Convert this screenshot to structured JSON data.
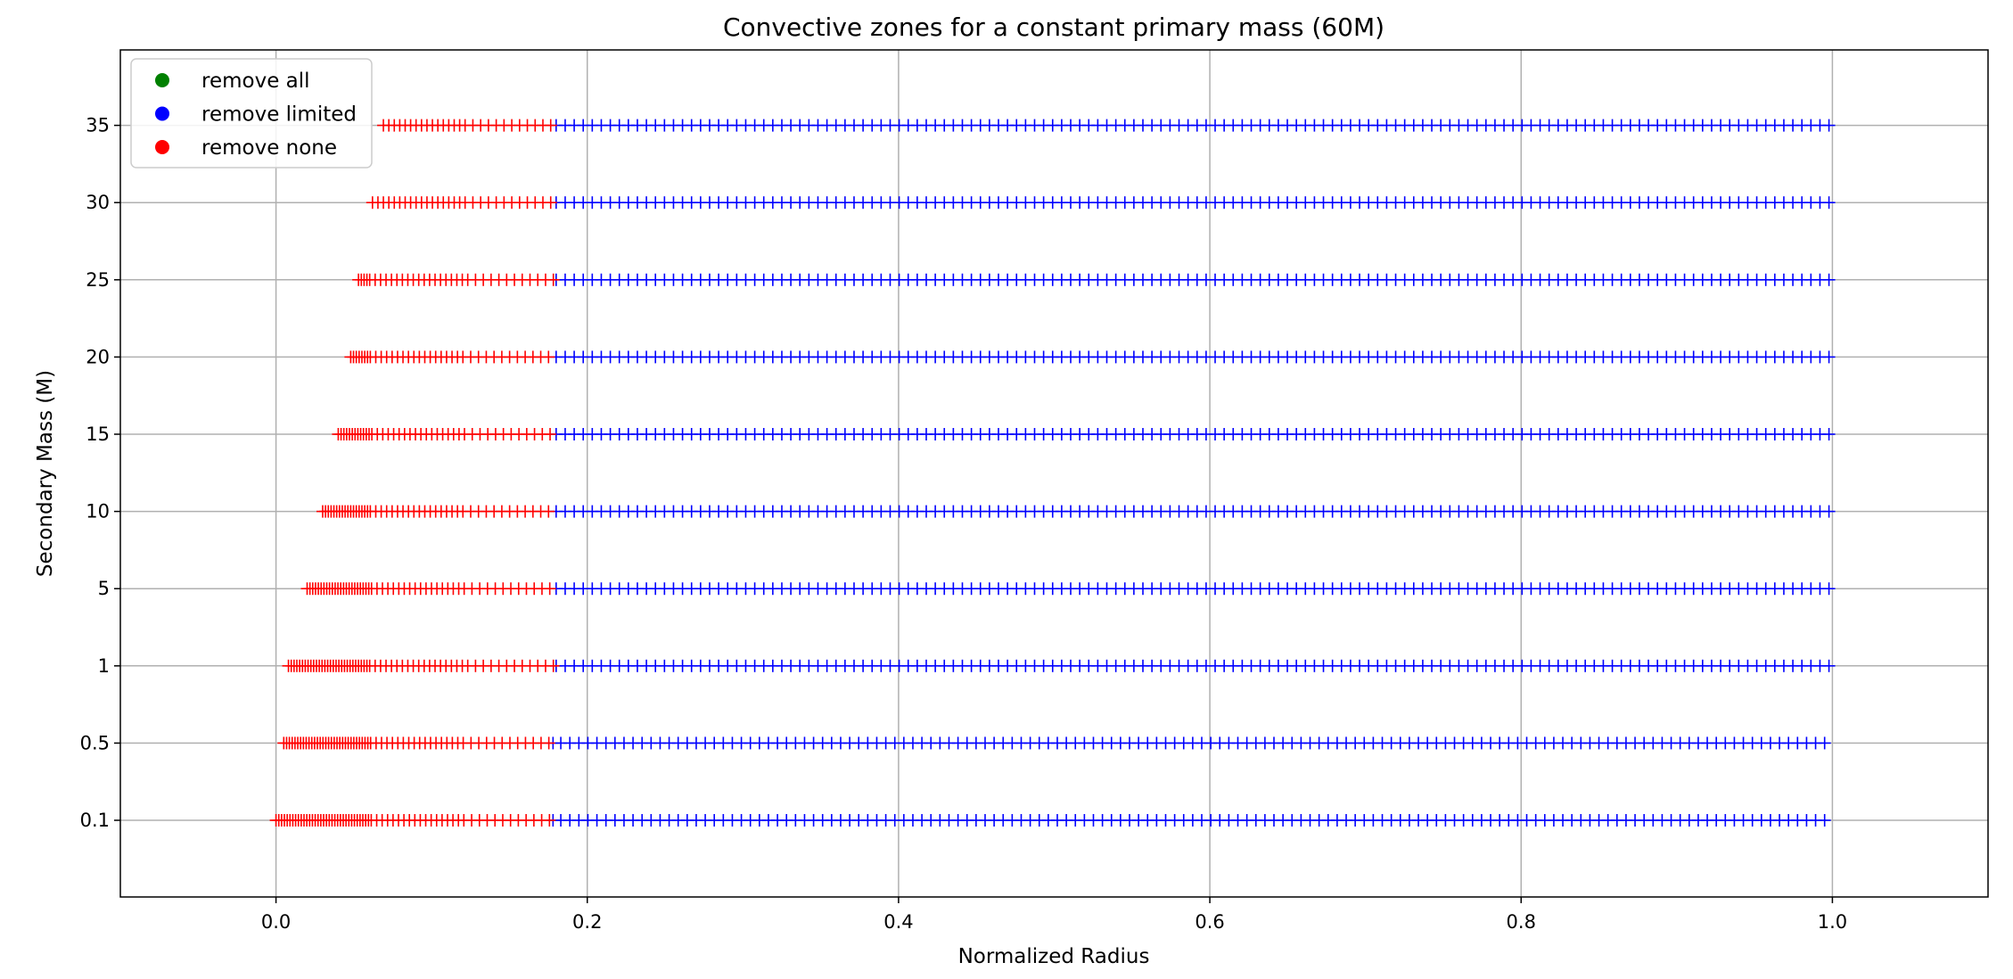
{
  "chart_data": {
    "type": "scatter",
    "title": "Convective zones for a constant primary mass (60M)",
    "xlabel": "Normalized Radius",
    "ylabel": "Secondary Mass (M)",
    "xlim": [
      -0.1,
      1.1
    ],
    "x_ticks": [
      "0.0",
      "0.2",
      "0.4",
      "0.6",
      "0.8",
      "1.0"
    ],
    "x_tick_values": [
      0.0,
      0.2,
      0.4,
      0.6,
      0.8,
      1.0
    ],
    "categories": [
      "0.1",
      "0.5",
      "1",
      "5",
      "10",
      "15",
      "20",
      "25",
      "30",
      "35"
    ],
    "grid": true,
    "legend_placement": "top-left",
    "marker": "plus",
    "series": [
      {
        "name": "remove all",
        "color": "#008000",
        "points": []
      },
      {
        "name": "remove limited",
        "color": "#0000ff",
        "segments": [
          {
            "category": "0.1",
            "x_range": [
              0.178,
              1.0
            ]
          },
          {
            "category": "0.5",
            "x_range": [
              0.178,
              1.0
            ]
          },
          {
            "category": "1",
            "x_range": [
              0.18,
              1.0
            ]
          },
          {
            "category": "5",
            "x_range": [
              0.18,
              1.0
            ]
          },
          {
            "category": "10",
            "x_range": [
              0.18,
              1.0
            ]
          },
          {
            "category": "15",
            "x_range": [
              0.18,
              1.0
            ]
          },
          {
            "category": "20",
            "x_range": [
              0.18,
              1.0
            ]
          },
          {
            "category": "25",
            "x_range": [
              0.18,
              1.0
            ]
          },
          {
            "category": "30",
            "x_range": [
              0.18,
              1.0
            ]
          },
          {
            "category": "35",
            "x_range": [
              0.18,
              1.0
            ]
          }
        ]
      },
      {
        "name": "remove none",
        "color": "#ff0000",
        "segments": [
          {
            "category": "0.1",
            "x_range": [
              0.0,
              0.178
            ]
          },
          {
            "category": "0.5",
            "x_range": [
              0.005,
              0.178
            ]
          },
          {
            "category": "1",
            "x_range": [
              0.008,
              0.18
            ]
          },
          {
            "category": "5",
            "x_range": [
              0.02,
              0.18
            ]
          },
          {
            "category": "10",
            "x_range": [
              0.03,
              0.18
            ]
          },
          {
            "category": "15",
            "x_range": [
              0.04,
              0.18
            ]
          },
          {
            "category": "20",
            "x_range": [
              0.048,
              0.18
            ]
          },
          {
            "category": "25",
            "x_range": [
              0.053,
              0.18
            ]
          },
          {
            "category": "30",
            "x_range": [
              0.062,
              0.18
            ]
          },
          {
            "category": "35",
            "x_range": [
              0.069,
              0.18
            ]
          }
        ]
      }
    ]
  }
}
